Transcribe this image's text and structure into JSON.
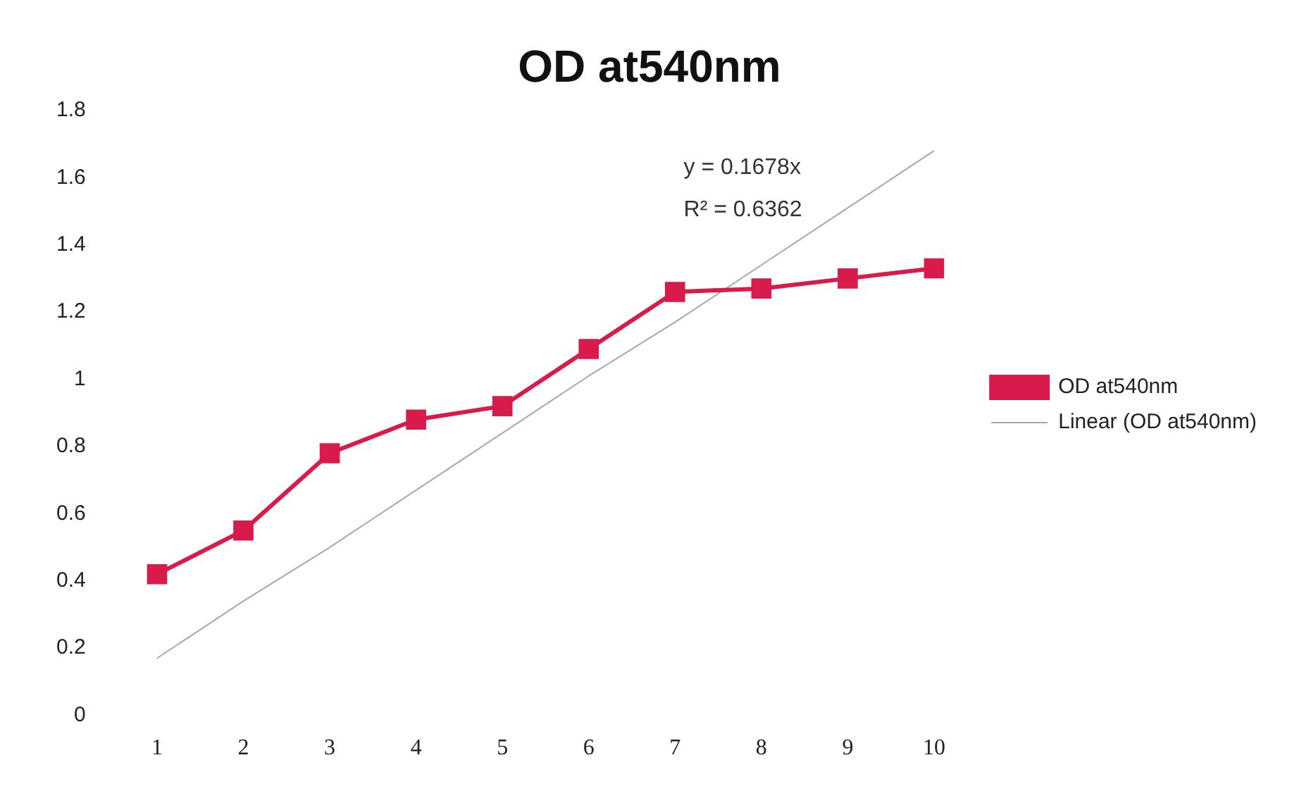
{
  "chart_data": {
    "type": "line",
    "title": "OD at540nm",
    "categories": [
      "1",
      "2",
      "3",
      "4",
      "5",
      "6",
      "7",
      "8",
      "9",
      "10"
    ],
    "series": [
      {
        "name": "OD at540nm",
        "color": "#d81b4a",
        "marker": "square",
        "values": [
          0.42,
          0.55,
          0.78,
          0.88,
          0.92,
          1.09,
          1.26,
          1.27,
          1.3,
          1.33
        ]
      },
      {
        "name": "Linear (OD at540nm)",
        "color": "#a8a8a8",
        "marker": "none",
        "values": [
          0.17,
          0.34,
          0.5,
          0.67,
          0.84,
          1.01,
          1.17,
          1.34,
          1.51,
          1.68
        ]
      }
    ],
    "ylim": [
      0,
      1.8
    ],
    "yticks": [
      0,
      0.2,
      0.4,
      0.6,
      0.8,
      1,
      1.2,
      1.4,
      1.6,
      1.8
    ],
    "grid": false,
    "legend": "right",
    "annotations": [
      "y = 0.1678x",
      "R² = 0.6362"
    ]
  }
}
